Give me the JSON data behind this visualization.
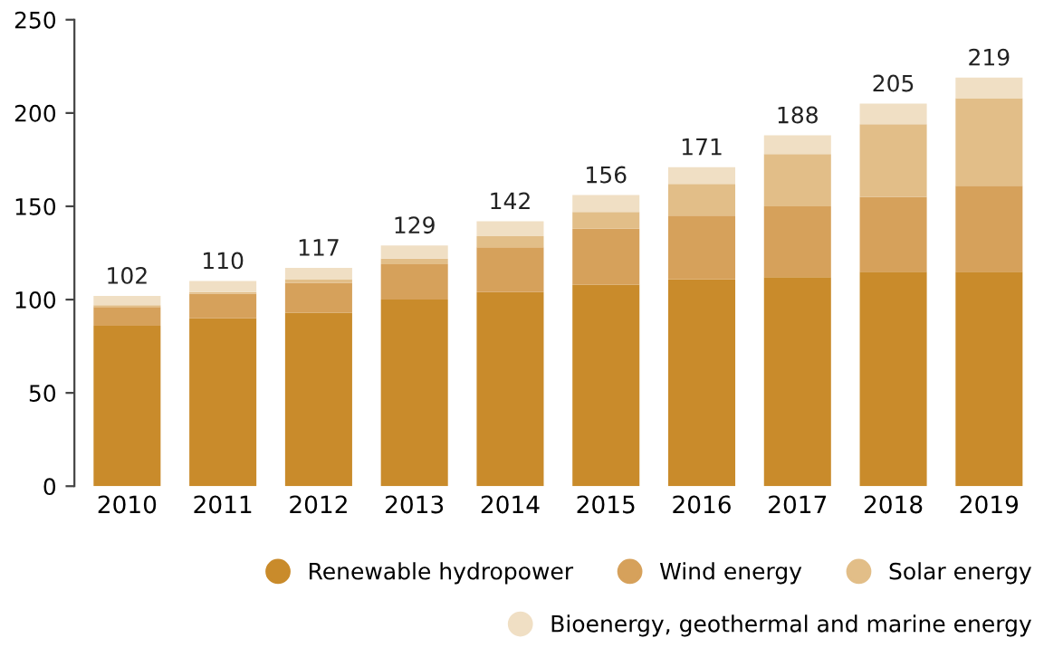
{
  "chart_data": {
    "type": "bar",
    "stacked": true,
    "categories": [
      "2010",
      "2011",
      "2012",
      "2013",
      "2014",
      "2015",
      "2016",
      "2017",
      "2018",
      "2019"
    ],
    "series": [
      {
        "name": "Renewable hydropower",
        "color": "#c98b2b",
        "values": [
          86,
          90,
          93,
          100,
          104,
          108,
          111,
          112,
          115,
          115
        ]
      },
      {
        "name": "Wind energy",
        "color": "#d6a15b",
        "values": [
          10,
          13,
          16,
          19,
          24,
          30,
          34,
          38,
          40,
          46
        ]
      },
      {
        "name": "Solar energy",
        "color": "#e2be88",
        "values": [
          1,
          1,
          2,
          3,
          6,
          9,
          17,
          28,
          39,
          47
        ]
      },
      {
        "name": "Bioenergy, geothermal and marine energy",
        "color": "#f0dfc4",
        "values": [
          5,
          6,
          6,
          7,
          8,
          9,
          9,
          10,
          11,
          11
        ]
      }
    ],
    "totals": [
      "102",
      "110",
      "117",
      "129",
      "142",
      "156",
      "171",
      "188",
      "205",
      "219"
    ],
    "ylim": [
      0,
      250
    ],
    "yticks": [
      0,
      50,
      100,
      150,
      200,
      250
    ],
    "grid": false,
    "legend": "bottom right"
  }
}
